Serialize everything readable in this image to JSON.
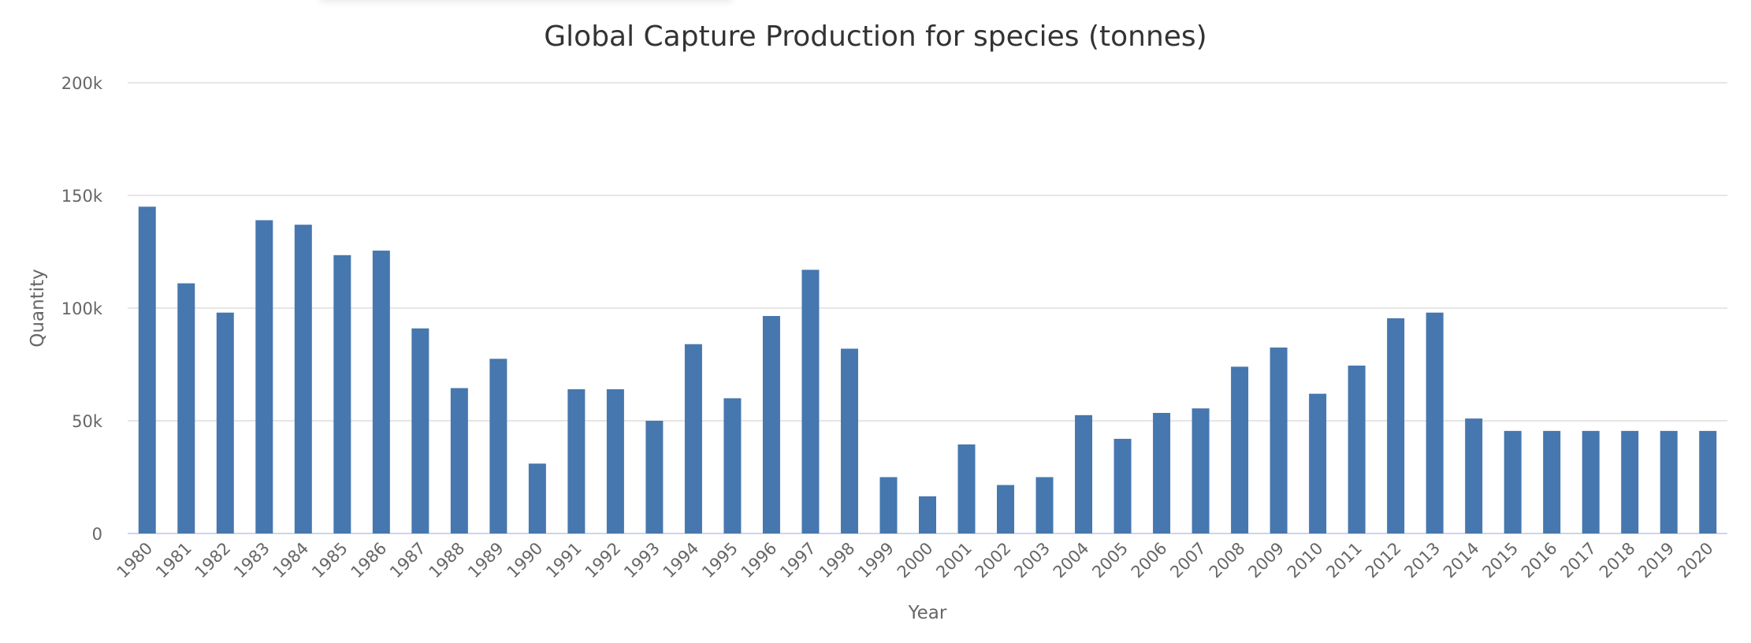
{
  "colors": {
    "bar": "#4677ae",
    "grid": "#e6e6e6",
    "text": "#666666",
    "title": "#333333"
  },
  "chart_data": {
    "type": "bar",
    "title": "Global Capture Production for species (tonnes)",
    "xlabel": "Year",
    "ylabel": "Quantity",
    "ylim": [
      0,
      200000
    ],
    "yticks": [
      0,
      50000,
      100000,
      150000,
      200000
    ],
    "ytick_labels": [
      "0",
      "50k",
      "100k",
      "150k",
      "200k"
    ],
    "grid": true,
    "legend": "none",
    "categories": [
      "1980",
      "1981",
      "1982",
      "1983",
      "1984",
      "1985",
      "1986",
      "1987",
      "1988",
      "1989",
      "1990",
      "1991",
      "1992",
      "1993",
      "1994",
      "1995",
      "1996",
      "1997",
      "1998",
      "1999",
      "2000",
      "2001",
      "2002",
      "2003",
      "2004",
      "2005",
      "2006",
      "2007",
      "2008",
      "2009",
      "2010",
      "2011",
      "2012",
      "2013",
      "2014",
      "2015",
      "2016",
      "2017",
      "2018",
      "2019",
      "2020"
    ],
    "values": [
      145000,
      111000,
      98000,
      139000,
      137000,
      123500,
      125500,
      91000,
      64500,
      77500,
      31000,
      64000,
      64000,
      50000,
      84000,
      60000,
      96500,
      117000,
      82000,
      25000,
      16500,
      39500,
      21500,
      25000,
      52500,
      42000,
      53500,
      55500,
      74000,
      82500,
      62000,
      74500,
      95500,
      98000,
      51000,
      45500,
      45500,
      45500,
      45500,
      45500,
      45500
    ]
  }
}
